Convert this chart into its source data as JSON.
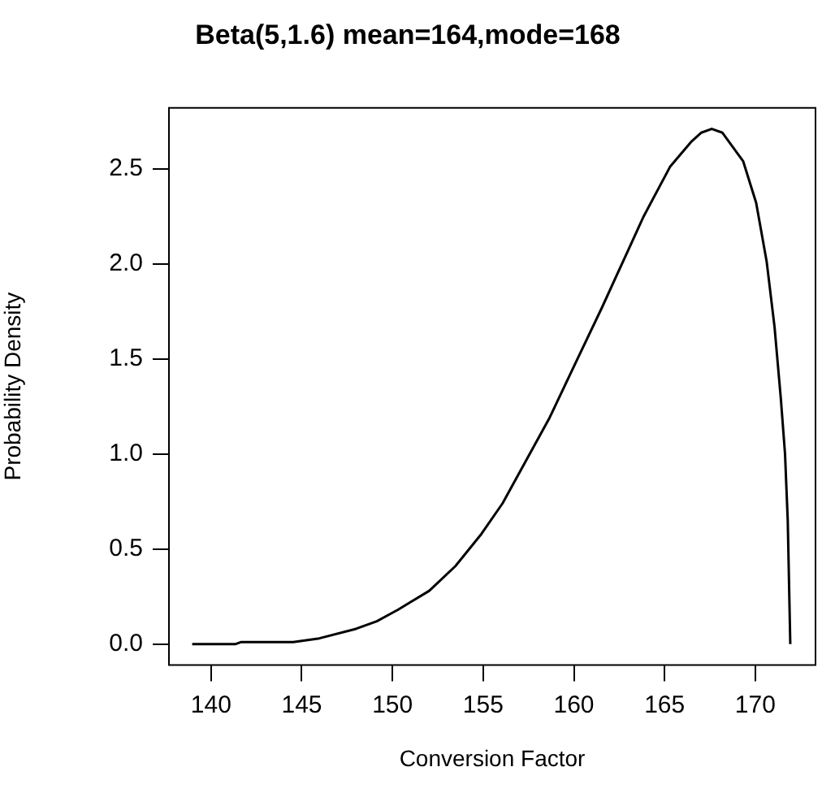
{
  "chart_data": {
    "type": "line",
    "title": "Beta(5,1.6) mean=164,mode=168",
    "xlabel": "Conversion Factor",
    "ylabel": "Probability Density",
    "x": [
      138.96,
      141.36,
      141.64,
      144.53,
      145.97,
      147.99,
      149.14,
      150.3,
      152.03,
      153.47,
      154.91,
      156.07,
      157.22,
      158.66,
      160.1,
      161.55,
      162.7,
      163.85,
      165.3,
      166.45,
      167.03,
      167.6,
      168.18,
      169.33,
      170.05,
      170.63,
      171.06,
      171.41,
      171.64,
      171.79,
      171.93
    ],
    "series": [
      {
        "color": "#000000",
        "values": [
          0,
          0,
          0.01,
          0.01,
          0.03,
          0.08,
          0.12,
          0.18,
          0.28,
          0.41,
          0.58,
          0.74,
          0.94,
          1.19,
          1.48,
          1.77,
          2.01,
          2.25,
          2.51,
          2.64,
          2.69,
          2.71,
          2.69,
          2.54,
          2.32,
          2.01,
          1.67,
          1.29,
          1,
          0.65,
          0
        ]
      }
    ],
    "xlim": [
      137.68,
      173.32
    ],
    "ylim": [
      -0.11,
      2.82
    ],
    "xticks": [
      140,
      145,
      150,
      155,
      160,
      165,
      170
    ],
    "yticks": [
      {
        "value": 0,
        "label": "0.0"
      },
      {
        "value": 0.5,
        "label": "0.5"
      },
      {
        "value": 1,
        "label": "1.0"
      },
      {
        "value": 1.5,
        "label": "1.5"
      },
      {
        "value": 2,
        "label": "2.0"
      },
      {
        "value": 2.5,
        "label": "2.5"
      }
    ],
    "marker": "none",
    "line_style": "solid",
    "grid": false,
    "legend": false
  }
}
